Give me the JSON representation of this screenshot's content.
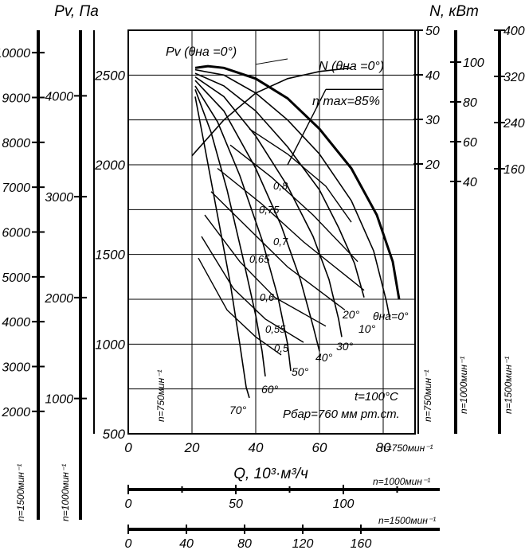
{
  "chart_data": {
    "type": "line",
    "title_left": "Pv, Па",
    "title_right": "N, кВт",
    "xlabel": "Q, 10³·м³/ч",
    "x_range": [
      0,
      90
    ],
    "y_range": [
      500,
      2750
    ],
    "x_ticks": [
      0,
      20,
      40,
      60,
      80
    ],
    "y_ticks": [
      500,
      1000,
      1500,
      2000,
      2500
    ],
    "grid": true,
    "scale_left_1500": {
      "label": "n=1500мин⁻¹",
      "ticks": [
        2000,
        3000,
        4000,
        5000,
        6000,
        7000,
        8000,
        9000,
        10000
      ]
    },
    "scale_left_1000": {
      "label": "n=1000мин⁻¹",
      "ticks": [
        1000,
        2000,
        3000,
        4000
      ]
    },
    "scale_inner_left": {
      "label": "n=750мин⁻¹"
    },
    "scale_power_750": {
      "label": "n=750мин⁻¹",
      "ticks": [
        20,
        30,
        40,
        50
      ]
    },
    "scale_power_1000": {
      "label": "n=1000мин⁻¹",
      "ticks": [
        40,
        60,
        80,
        100
      ]
    },
    "scale_power_1500": {
      "label": "n=1500мин⁻¹",
      "ticks": [
        160,
        240,
        320,
        400
      ]
    },
    "scale_q_750": {
      "label": "n=750мин⁻¹"
    },
    "scale_q_1000": {
      "label": "n=1000мин⁻¹",
      "ticks": [
        0,
        50,
        100
      ]
    },
    "scale_q_1500": {
      "label": "n=1500мин⁻¹",
      "ticks": [
        0,
        40,
        80,
        120,
        160
      ]
    },
    "annotations": {
      "pv_curve": "Pv (θна =0°)",
      "n_curve": "N (θна =0°)",
      "eta_max": "η max=85%",
      "theta0": "θна=0°",
      "conditions_t": "t=100°C",
      "conditions_p": "Рбар=760 мм рт.ст."
    },
    "series": [
      {
        "angle": "0°",
        "label": "θна=0°",
        "points": [
          [
            21,
            2540
          ],
          [
            25,
            2550
          ],
          [
            30,
            2540
          ],
          [
            40,
            2480
          ],
          [
            50,
            2370
          ],
          [
            60,
            2200
          ],
          [
            70,
            1980
          ],
          [
            78,
            1720
          ],
          [
            83,
            1460
          ],
          [
            85,
            1250
          ]
        ]
      },
      {
        "angle": "10°",
        "label": "10°",
        "points": [
          [
            21,
            2530
          ],
          [
            30,
            2500
          ],
          [
            40,
            2400
          ],
          [
            50,
            2250
          ],
          [
            60,
            2060
          ],
          [
            70,
            1800
          ],
          [
            77,
            1520
          ],
          [
            81,
            1240
          ],
          [
            82,
            1150
          ]
        ]
      },
      {
        "angle": "20°",
        "label": "20°",
        "points": [
          [
            21,
            2510
          ],
          [
            30,
            2440
          ],
          [
            40,
            2300
          ],
          [
            50,
            2100
          ],
          [
            60,
            1860
          ],
          [
            66,
            1650
          ],
          [
            71,
            1450
          ],
          [
            74,
            1260
          ]
        ]
      },
      {
        "angle": "30°",
        "label": "30°",
        "points": [
          [
            21,
            2490
          ],
          [
            30,
            2380
          ],
          [
            40,
            2160
          ],
          [
            50,
            1880
          ],
          [
            58,
            1600
          ],
          [
            63,
            1360
          ],
          [
            66,
            1140
          ],
          [
            67,
            1040
          ]
        ]
      },
      {
        "angle": "40°",
        "label": "40°",
        "points": [
          [
            21,
            2470
          ],
          [
            30,
            2300
          ],
          [
            40,
            1980
          ],
          [
            48,
            1660
          ],
          [
            54,
            1360
          ],
          [
            58,
            1100
          ],
          [
            60,
            960
          ]
        ]
      },
      {
        "angle": "50°",
        "label": "50°",
        "points": [
          [
            21,
            2440
          ],
          [
            28,
            2240
          ],
          [
            35,
            1940
          ],
          [
            42,
            1580
          ],
          [
            47,
            1260
          ],
          [
            50,
            1000
          ],
          [
            51,
            850
          ]
        ]
      },
      {
        "angle": "60°",
        "label": "60°",
        "points": [
          [
            21,
            2420
          ],
          [
            26,
            2180
          ],
          [
            31,
            1860
          ],
          [
            36,
            1480
          ],
          [
            40,
            1160
          ],
          [
            42,
            960
          ],
          [
            43,
            820
          ]
        ]
      },
      {
        "angle": "70°",
        "label": "70°",
        "points": [
          [
            21,
            2380
          ],
          [
            24,
            2100
          ],
          [
            28,
            1720
          ],
          [
            32,
            1340
          ],
          [
            35,
            1000
          ],
          [
            37,
            760
          ],
          [
            38,
            700
          ]
        ]
      }
    ],
    "efficiency": [
      {
        "label": "0,8",
        "value": 0.8
      },
      {
        "label": "0,75",
        "value": 0.75
      },
      {
        "label": "0,7",
        "value": 0.7
      },
      {
        "label": "0,65",
        "value": 0.65
      },
      {
        "label": "0,6",
        "value": 0.6
      },
      {
        "label": "0,55",
        "value": 0.55
      },
      {
        "label": "0,5",
        "value": 0.5
      }
    ]
  }
}
